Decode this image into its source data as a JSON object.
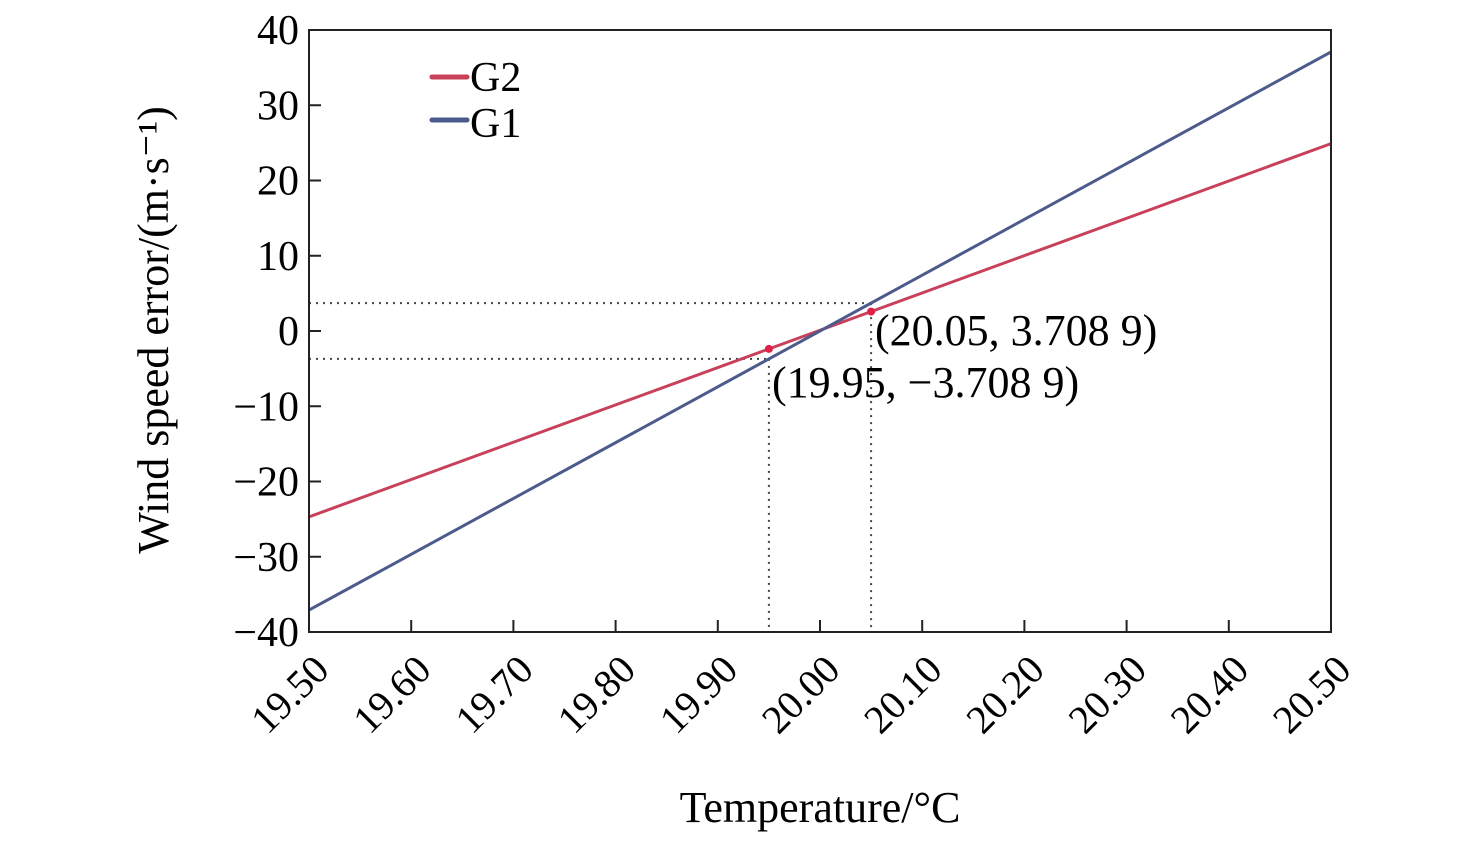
{
  "chart_data": {
    "type": "line",
    "title": "",
    "xlabel": "Temperature/°C",
    "ylabel": "Wind speed error/(m·s⁻¹)",
    "xlim": [
      19.5,
      20.5
    ],
    "ylim": [
      -40,
      40
    ],
    "x_ticks": [
      "19.50",
      "19.60",
      "19.70",
      "19.80",
      "19.90",
      "20.00",
      "20.10",
      "20.20",
      "20.30",
      "20.40",
      "20.50"
    ],
    "y_ticks": [
      "40",
      "30",
      "20",
      "10",
      "0",
      "−10",
      "−20",
      "−30",
      "−40"
    ],
    "legend_position": "top-left",
    "series": [
      {
        "name": "G2",
        "color": "#c8405a",
        "x": [
          19.5,
          20.5
        ],
        "y": [
          -24.7,
          24.9
        ]
      },
      {
        "name": "G1",
        "color": "#4d5b8c",
        "x": [
          19.5,
          20.5
        ],
        "y": [
          -37.09,
          37.09
        ]
      }
    ],
    "annotations": [
      {
        "text": "(20.05, 3.708 9)",
        "x": 20.05,
        "y": 3.7089
      },
      {
        "text": "(19.95, −3.708 9)",
        "x": 19.95,
        "y": -3.7089
      }
    ]
  }
}
